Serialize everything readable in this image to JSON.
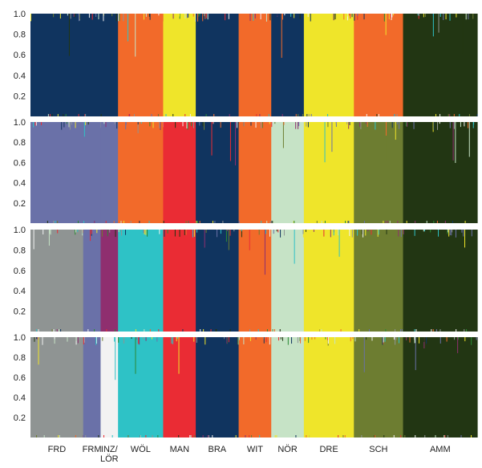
{
  "chart_data": {
    "type": "bar",
    "subtype": "stacked-membership-structure-plot",
    "panels": 4,
    "y_ticks": [
      "0.2",
      "0.4",
      "0.6",
      "0.8",
      "1.0"
    ],
    "ylim": [
      0,
      1
    ],
    "groups": [
      {
        "label": "FRD",
        "width": 0.118
      },
      {
        "label": "FRM",
        "width": 0.039
      },
      {
        "label": "INZ/\nLÖR",
        "width": 0.039
      },
      {
        "label": "WÖL",
        "width": 0.101
      },
      {
        "label": "MAN",
        "width": 0.073
      },
      {
        "label": "BRA",
        "width": 0.096
      },
      {
        "label": "WIT",
        "width": 0.073
      },
      {
        "label": "NÖR",
        "width": 0.073
      },
      {
        "label": "DRE",
        "width": 0.112
      },
      {
        "label": "SCH",
        "width": 0.11
      },
      {
        "label": "AMM",
        "width": 0.166
      }
    ],
    "panel_assignments": [
      [
        "navy",
        "navy",
        "navy",
        "orange",
        "yellow",
        "navy",
        "orange",
        "navy",
        "yellow",
        "orange",
        "darkgreen"
      ],
      [
        "slate",
        "slate",
        "slate",
        "orange",
        "red",
        "navy",
        "orange",
        "mint",
        "yellow",
        "olive",
        "darkgreen"
      ],
      [
        "gray",
        "slate",
        "purple",
        "cyan",
        "red",
        "navy",
        "orange",
        "mint",
        "yellow",
        "olive",
        "darkgreen"
      ],
      [
        "gray",
        "slate",
        "white",
        "cyan",
        "red",
        "navy",
        "orange",
        "mint",
        "yellow",
        "olive",
        "darkgreen"
      ]
    ],
    "cluster_colors": {
      "navy": "#10345f",
      "orange": "#f26a2a",
      "yellow": "#efe52a",
      "darkgreen": "#223613",
      "slate": "#6a71a8",
      "red": "#ea2c34",
      "mint": "#c6e3c6",
      "olive": "#6d7d31",
      "gray": "#8f9493",
      "purple": "#8f2f6f",
      "cyan": "#2ec2c6",
      "white": "#f2f2f2",
      "green": "#2a8a34"
    }
  }
}
